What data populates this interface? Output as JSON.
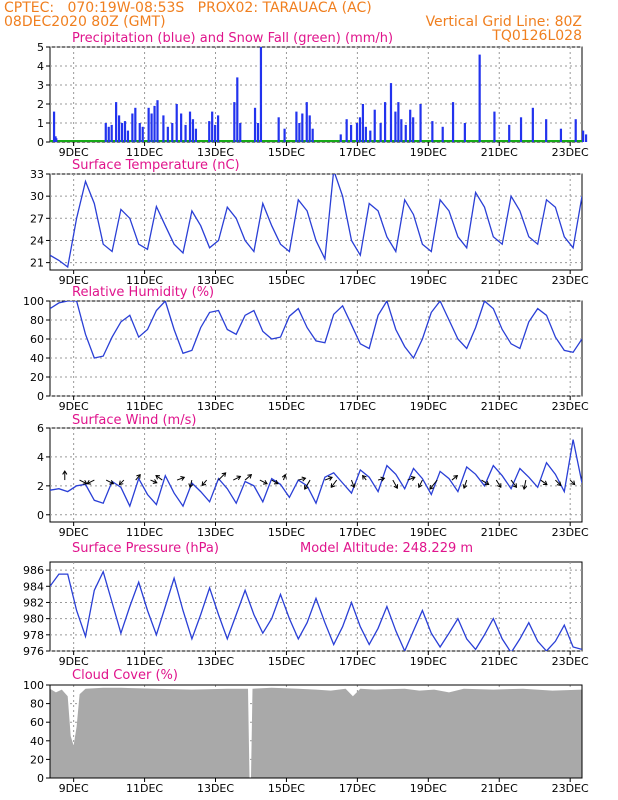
{
  "header": {
    "left_line1": "CPTEC:   070:19W-08:53S   PROX02: TARAUACA (AC)",
    "left_line2": "08DEC2020 80Z (GMT)",
    "right_line2": "Vertical Grid Line: 80Z",
    "right_line3": "TQ0126L028"
  },
  "colors": {
    "header": "#f07f1f",
    "panel_title": "#e0148c",
    "precip": "#2233ee",
    "snow": "#18a818",
    "line": "#2a3fd6",
    "cloud": "#a9a9a9",
    "arrow": "#000000"
  },
  "x_ticks": [
    "9DEC",
    "11DEC",
    "13DEC",
    "15DEC",
    "17DEC",
    "19DEC",
    "21DEC",
    "23DEC"
  ],
  "chart_data": [
    {
      "type": "bar",
      "title": "Precipitation (blue) and Snow Fall (green) (mm/h)",
      "ylim": [
        0,
        5
      ],
      "yticks": [
        0,
        1,
        2,
        3,
        4,
        5
      ],
      "grid": true,
      "series": [
        {
          "name": "Precipitation",
          "x_hours": [
            2,
            3,
            3.5,
            37,
            39,
            41,
            44,
            46,
            48,
            50,
            52,
            55,
            57,
            60,
            62,
            66,
            68,
            70,
            72,
            76,
            79,
            82,
            85,
            88,
            91,
            94,
            96,
            98,
            107,
            109,
            111,
            113,
            124,
            126,
            128,
            138,
            140,
            142,
            154,
            158,
            166,
            168,
            170,
            173,
            175,
            177,
            196,
            200,
            203,
            207,
            209,
            211,
            213,
            216,
            219,
            223,
            226,
            230,
            233,
            235,
            237,
            240,
            243,
            245,
            250,
            258,
            265,
            272,
            280,
            290,
            300,
            310,
            318,
            326,
            335,
            345,
            355,
            360,
            362
          ],
          "values": [
            1.6,
            0.3,
            0.2,
            1.0,
            0.8,
            0.9,
            2.1,
            1.4,
            1.0,
            1.1,
            0.6,
            1.5,
            1.8,
            1.0,
            0.8,
            1.8,
            1.5,
            1.9,
            2.2,
            1.4,
            0.8,
            1.0,
            2.0,
            1.5,
            0.9,
            1.6,
            1.2,
            0.7,
            1.1,
            1.6,
            0.9,
            1.4,
            2.1,
            3.4,
            1.0,
            1.8,
            1.0,
            5.0,
            1.3,
            0.7,
            1.6,
            1.0,
            1.5,
            2.1,
            1.4,
            0.7,
            0.4,
            1.2,
            0.9,
            1.0,
            1.3,
            2.0,
            0.8,
            0.6,
            1.7,
            1.0,
            2.1,
            3.1,
            1.6,
            2.1,
            1.2,
            0.9,
            1.7,
            1.3,
            2.0,
            1.1,
            0.8,
            2.1,
            1.0,
            4.6,
            1.6,
            0.9,
            1.3,
            1.8,
            1.2,
            0.7,
            1.2,
            0.6,
            0.4
          ]
        },
        {
          "name": "Snow Fall",
          "x_hours": [],
          "values": []
        }
      ]
    },
    {
      "type": "line",
      "title": "Surface Temperature (nC)",
      "ylim": [
        20,
        33
      ],
      "yticks": [
        21,
        24,
        27,
        30,
        33
      ],
      "grid": true,
      "x_hours": [
        0,
        6,
        12,
        18,
        24,
        30,
        36,
        42,
        48,
        54,
        60,
        66,
        72,
        78,
        84,
        90,
        96,
        102,
        108,
        114,
        120,
        126,
        132,
        138,
        144,
        150,
        156,
        162,
        168,
        174,
        180,
        186,
        192,
        198,
        204,
        210,
        216,
        222,
        228,
        234,
        240,
        246,
        252,
        258,
        264,
        270,
        276,
        282,
        288,
        294,
        300,
        306,
        312,
        318,
        324,
        330,
        336,
        342,
        348,
        354,
        360
      ],
      "values": [
        22,
        21.3,
        20.4,
        27,
        32,
        29,
        23.5,
        22.5,
        28.2,
        27,
        23.5,
        22.8,
        28.6,
        26,
        23.5,
        22.3,
        28,
        26,
        23,
        24,
        28.5,
        27,
        24,
        22.5,
        29,
        26,
        23.5,
        22.5,
        29.5,
        28,
        24,
        21.5,
        33.5,
        30,
        24,
        22,
        29,
        28,
        24.5,
        22.5,
        29.5,
        27.5,
        23.5,
        22.5,
        29.5,
        28,
        24.5,
        23,
        30.5,
        28.5,
        24.5,
        23.5,
        30,
        28,
        24.5,
        23.5,
        29.5,
        28.5,
        24.5,
        23,
        30
      ]
    },
    {
      "type": "line",
      "title": "Relative Humidity (%)",
      "ylim": [
        0,
        100
      ],
      "yticks": [
        0,
        20,
        40,
        60,
        80,
        100
      ],
      "grid": true,
      "x_hours": [
        0,
        6,
        12,
        18,
        24,
        30,
        36,
        42,
        48,
        54,
        60,
        66,
        72,
        78,
        84,
        90,
        96,
        102,
        108,
        114,
        120,
        126,
        132,
        138,
        144,
        150,
        156,
        162,
        168,
        174,
        180,
        186,
        192,
        198,
        204,
        210,
        216,
        222,
        228,
        234,
        240,
        246,
        252,
        258,
        264,
        270,
        276,
        282,
        288,
        294,
        300,
        306,
        312,
        318,
        324,
        330,
        336,
        342,
        348,
        354,
        360
      ],
      "values": [
        92,
        98,
        100,
        100,
        65,
        40,
        42,
        62,
        78,
        85,
        62,
        70,
        90,
        100,
        70,
        45,
        48,
        72,
        88,
        90,
        70,
        65,
        85,
        90,
        68,
        60,
        62,
        84,
        92,
        72,
        58,
        56,
        86,
        95,
        75,
        55,
        50,
        85,
        100,
        70,
        52,
        40,
        60,
        88,
        100,
        80,
        60,
        50,
        72,
        100,
        92,
        70,
        55,
        50,
        78,
        92,
        85,
        62,
        48,
        46,
        60
      ]
    },
    {
      "type": "line",
      "title": "Surface Wind (m/s)",
      "ylim": [
        -0.5,
        6
      ],
      "yticks": [
        0,
        2,
        4,
        6
      ],
      "grid": true,
      "x_hours": [
        0,
        6,
        12,
        18,
        24,
        30,
        36,
        42,
        48,
        54,
        60,
        66,
        72,
        78,
        84,
        90,
        96,
        102,
        108,
        114,
        120,
        126,
        132,
        138,
        144,
        150,
        156,
        162,
        168,
        174,
        180,
        186,
        192,
        198,
        204,
        210,
        216,
        222,
        228,
        234,
        240,
        246,
        252,
        258,
        264,
        270,
        276,
        282,
        288,
        294,
        300,
        306,
        312,
        318,
        324,
        330,
        336,
        342,
        348,
        354,
        360
      ],
      "values": [
        1.7,
        1.8,
        1.6,
        2.0,
        2.1,
        1.0,
        0.8,
        2.3,
        1.9,
        0.6,
        2.5,
        1.4,
        0.7,
        2.7,
        1.5,
        0.6,
        2.2,
        1.6,
        0.9,
        2.5,
        1.8,
        0.8,
        2.3,
        2.0,
        0.9,
        2.5,
        2.1,
        1.2,
        2.4,
        2.0,
        0.8,
        2.6,
        2.9,
        2.2,
        1.5,
        3.1,
        2.6,
        1.6,
        3.4,
        2.8,
        1.8,
        3.2,
        2.5,
        1.4,
        3.0,
        2.5,
        1.6,
        3.3,
        2.8,
        2.0,
        3.4,
        2.7,
        1.8,
        3.2,
        2.6,
        1.9,
        3.6,
        2.8,
        1.6,
        5.2,
        2.2
      ],
      "wind_arrows": {
        "x_hours": [
          10,
          20,
          30,
          38,
          50,
          58,
          68,
          76,
          86,
          96,
          106,
          114,
          124,
          132,
          142,
          150,
          158,
          168,
          176,
          186,
          194,
          204,
          214,
          222,
          232,
          242,
          252,
          262,
          272,
          282,
          292,
          302,
          312,
          322,
          332,
          342,
          352
        ],
        "u": [
          0,
          0.8,
          -0.8,
          0.8,
          -0.5,
          0.5,
          0.7,
          -0.7,
          0.8,
          -0.2,
          -0.5,
          0.8,
          0.8,
          0.7,
          0.8,
          0.7,
          0.2,
          0.8,
          -0.6,
          0.8,
          -0.6,
          0.3,
          -0.4,
          0.7,
          0.5,
          0.8,
          -0.4,
          -0.8,
          0.6,
          -0.3,
          0.8,
          0.5,
          0.6,
          -0.2,
          0.7,
          0.6,
          0.5
        ],
        "v": [
          1.0,
          -0.4,
          -0.4,
          -0.4,
          -0.5,
          0.6,
          -0.3,
          0.5,
          0.3,
          -0.8,
          -0.6,
          0.8,
          0.4,
          0.6,
          -0.4,
          -0.4,
          0.6,
          0.2,
          -1.0,
          0.3,
          -0.8,
          -0.8,
          0.5,
          0.2,
          -0.9,
          0.3,
          -0.8,
          -1.0,
          0.5,
          -0.9,
          -0.5,
          -0.8,
          -0.8,
          -1.0,
          -0.5,
          -0.6,
          -0.5
        ]
      }
    },
    {
      "type": "line",
      "title": "Surface Pressure (hPa)",
      "subtitle": "Model Altitude: 248.229  m",
      "ylim": [
        976,
        987
      ],
      "yticks": [
        976,
        978,
        980,
        982,
        984,
        986
      ],
      "grid": true,
      "x_hours": [
        0,
        6,
        12,
        18,
        24,
        30,
        36,
        42,
        48,
        54,
        60,
        66,
        72,
        78,
        84,
        90,
        96,
        102,
        108,
        114,
        120,
        126,
        132,
        138,
        144,
        150,
        156,
        162,
        168,
        174,
        180,
        186,
        192,
        198,
        204,
        210,
        216,
        222,
        228,
        234,
        240,
        246,
        252,
        258,
        264,
        270,
        276,
        282,
        288,
        294,
        300,
        306,
        312,
        318,
        324,
        330,
        336,
        342,
        348,
        354,
        360
      ],
      "values": [
        984,
        985.5,
        985.5,
        981,
        977.8,
        983.5,
        985.8,
        982,
        978.2,
        981.5,
        984.5,
        981,
        978,
        981.5,
        985,
        981,
        977.5,
        980.5,
        983.8,
        980.5,
        977.5,
        980.5,
        983.5,
        980.5,
        978.2,
        980,
        983,
        980,
        977.5,
        979.5,
        982.5,
        979.5,
        976.8,
        979,
        982,
        979,
        976.8,
        978.8,
        981.5,
        978.5,
        976,
        978.5,
        981,
        978.2,
        976.5,
        978.2,
        980,
        977.5,
        976.2,
        978,
        980,
        977.5,
        975.8,
        977.5,
        979.5,
        977.2,
        976,
        977.2,
        979.2,
        976.5,
        976.2
      ]
    },
    {
      "type": "area",
      "title": "Cloud Cover (%)",
      "ylim": [
        0,
        100
      ],
      "yticks": [
        0,
        20,
        40,
        60,
        80,
        100
      ],
      "grid": true,
      "x_hours": [
        0,
        4,
        8,
        12,
        14,
        16,
        18,
        20,
        24,
        36,
        48,
        72,
        96,
        120,
        134,
        135,
        136,
        137,
        150,
        168,
        180,
        190,
        200,
        205,
        210,
        220,
        240,
        250,
        260,
        270,
        280,
        300,
        320,
        340,
        360
      ],
      "values": [
        96,
        92,
        95,
        88,
        45,
        35,
        55,
        90,
        96,
        97,
        97,
        96,
        95,
        96,
        96,
        0,
        0,
        96,
        97,
        96,
        95,
        94,
        96,
        88,
        96,
        95,
        96,
        94,
        95,
        92,
        96,
        95,
        96,
        94,
        95
      ]
    }
  ]
}
